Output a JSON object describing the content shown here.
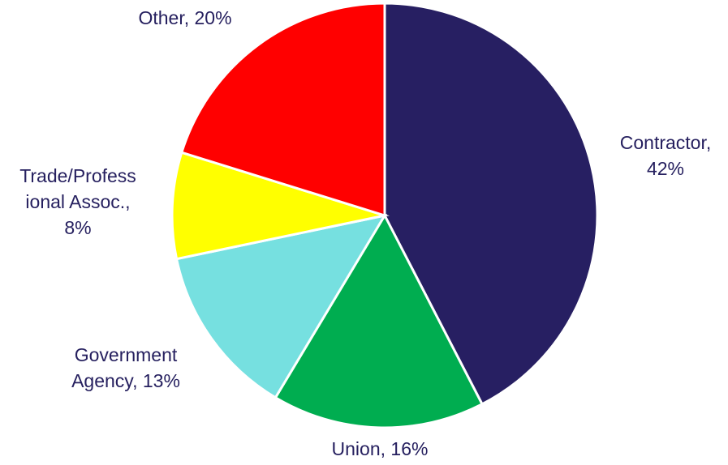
{
  "chart_data": {
    "type": "pie",
    "slices": [
      {
        "label": "Contractor",
        "value": 42,
        "color": "#271f62",
        "label_lines": [
          "Contractor,",
          "42%"
        ]
      },
      {
        "label": "Union",
        "value": 16,
        "color": "#00ad50",
        "label_lines": [
          "Union, 16%"
        ]
      },
      {
        "label": "Government Agency",
        "value": 13,
        "color": "#76e0e0",
        "label_lines": [
          "Government",
          "Agency, 13%"
        ]
      },
      {
        "label": "Trade/Professional Assoc.",
        "value": 8,
        "color": "#ffff00",
        "label_lines": [
          "Trade/Profess",
          "ional Assoc.,",
          "8%"
        ]
      },
      {
        "label": "Other",
        "value": 20,
        "color": "#ff0000",
        "label_lines": [
          "Other, 20%"
        ]
      }
    ],
    "start_angle_deg": 0,
    "direction": "clockwise",
    "label_color": "#26205f"
  }
}
